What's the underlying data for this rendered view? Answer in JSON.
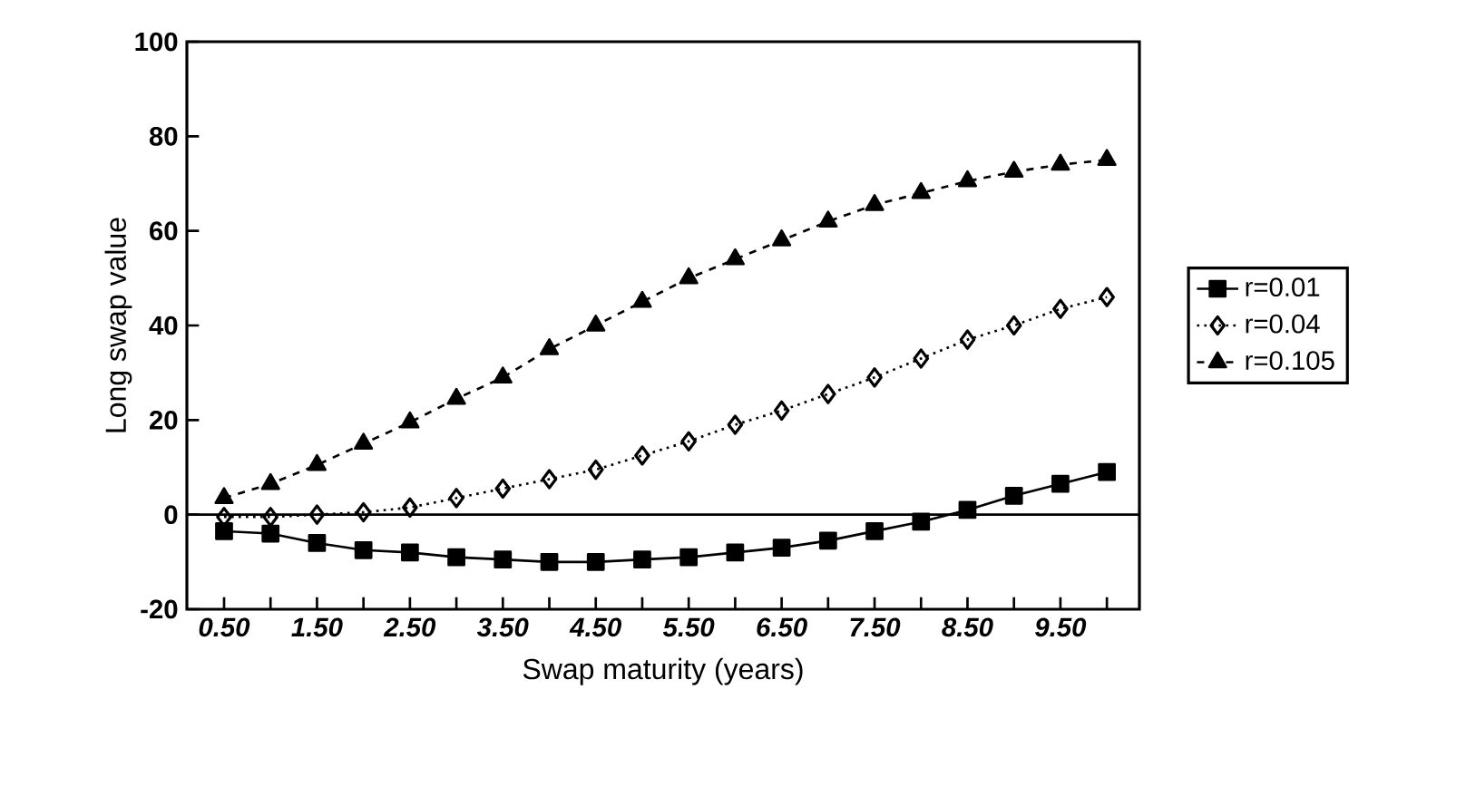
{
  "chart_data": {
    "type": "line",
    "xlabel": "Swap maturity (years)",
    "ylabel": "Long swap value",
    "x": [
      0.5,
      1.0,
      1.5,
      2.0,
      2.5,
      3.0,
      3.5,
      4.0,
      4.5,
      5.0,
      5.5,
      6.0,
      6.5,
      7.0,
      7.5,
      8.0,
      8.5,
      9.0,
      9.5,
      10.0
    ],
    "series": [
      {
        "name": "r=0.01",
        "color": "#000000",
        "marker": "square",
        "line_style": "solid",
        "values": [
          -3.5,
          -4,
          -6,
          -7.5,
          -8,
          -9,
          -9.5,
          -10,
          -10,
          -9.5,
          -9,
          -8,
          -7,
          -5.5,
          -3.5,
          -1.5,
          1,
          4,
          6.5,
          9
        ]
      },
      {
        "name": "r=0.04",
        "color": "#000000",
        "marker": "diamond",
        "line_style": "dotted",
        "values": [
          -0.5,
          -0.5,
          0,
          0.5,
          1.5,
          3.5,
          5.5,
          7.5,
          9.5,
          12.5,
          15.5,
          19,
          22,
          25.5,
          29,
          33,
          37,
          40,
          43.5,
          46
        ]
      },
      {
        "name": "r=0.105",
        "color": "#000000",
        "marker": "triangle",
        "line_style": "dashed",
        "values": [
          3.5,
          6.5,
          10.5,
          15,
          19.5,
          24.5,
          29,
          35,
          40,
          45,
          50,
          54,
          58,
          62,
          65.5,
          68,
          70.5,
          72.5,
          74,
          75
        ]
      }
    ],
    "xlim": [
      0.1,
      10.35
    ],
    "xticks": [
      {
        "value": 0.5,
        "label": "0.50"
      },
      {
        "value": 1.0,
        "label": null
      },
      {
        "value": 1.5,
        "label": "1.50"
      },
      {
        "value": 2.0,
        "label": null
      },
      {
        "value": 2.5,
        "label": "2.50"
      },
      {
        "value": 3.0,
        "label": null
      },
      {
        "value": 3.5,
        "label": "3.50"
      },
      {
        "value": 4.0,
        "label": null
      },
      {
        "value": 4.5,
        "label": "4.50"
      },
      {
        "value": 5.0,
        "label": null
      },
      {
        "value": 5.5,
        "label": "5.50"
      },
      {
        "value": 6.0,
        "label": null
      },
      {
        "value": 6.5,
        "label": "6.50"
      },
      {
        "value": 7.0,
        "label": null
      },
      {
        "value": 7.5,
        "label": "7.50"
      },
      {
        "value": 8.0,
        "label": null
      },
      {
        "value": 8.5,
        "label": "8.50"
      },
      {
        "value": 9.0,
        "label": null
      },
      {
        "value": 9.5,
        "label": "9.50"
      },
      {
        "value": 10.0,
        "label": null
      }
    ],
    "ylim": [
      -20,
      100
    ],
    "yticks": [
      -20,
      0,
      20,
      40,
      60,
      80,
      100
    ],
    "ref_lines": [
      {
        "axis": "y",
        "value": 0
      }
    ],
    "grid": false,
    "legend": "right"
  }
}
